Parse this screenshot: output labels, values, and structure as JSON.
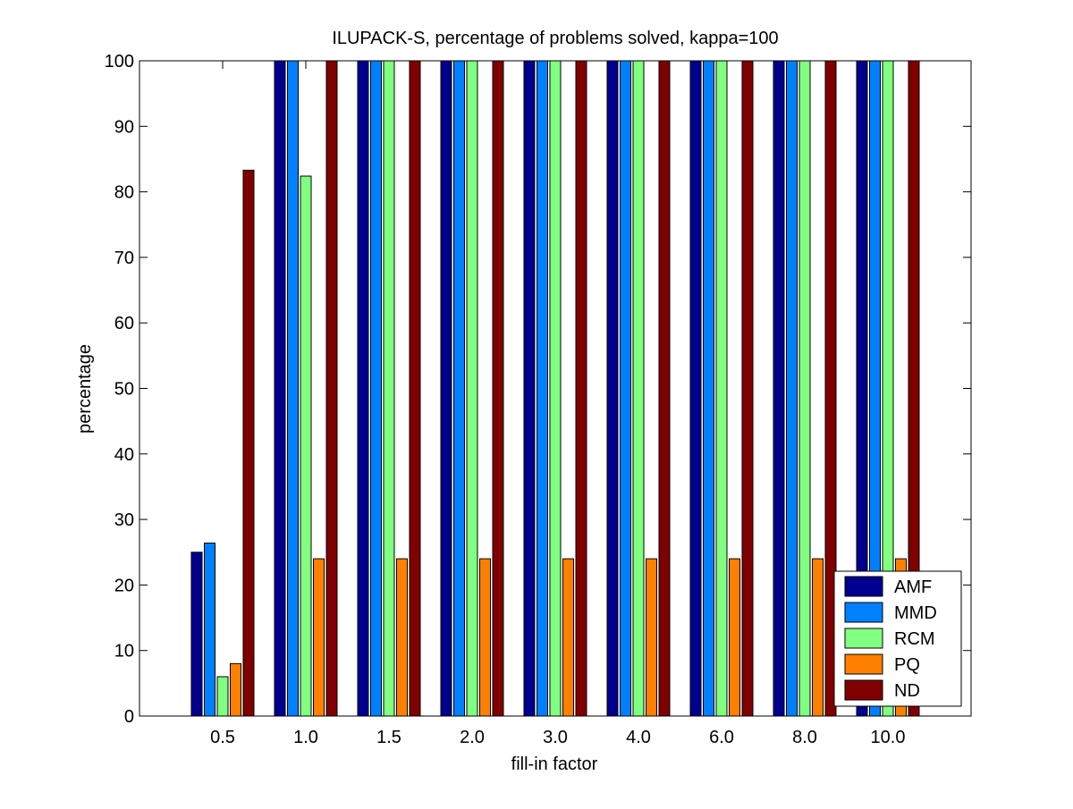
{
  "chart_data": {
    "type": "bar",
    "title": "ILUPACK-S, percentage of problems solved, kappa=100",
    "xlabel": "fill-in factor",
    "ylabel": "percentage",
    "ylim": [
      0,
      100
    ],
    "yticks": [
      0,
      10,
      20,
      30,
      40,
      50,
      60,
      70,
      80,
      90,
      100
    ],
    "grid": false,
    "legend_position": "bottom-right",
    "categories": [
      "0.5",
      "1.0",
      "1.5",
      "2.0",
      "3.0",
      "4.0",
      "6.0",
      "8.0",
      "10.0"
    ],
    "series": [
      {
        "name": "AMF",
        "color": "#00008f",
        "values": [
          25,
          100,
          100,
          100,
          100,
          100,
          100,
          100,
          100
        ]
      },
      {
        "name": "MMD",
        "color": "#0080ff",
        "values": [
          26.4,
          100,
          100,
          100,
          100,
          100,
          100,
          100,
          100
        ]
      },
      {
        "name": "RCM",
        "color": "#80ff80",
        "values": [
          6,
          82.4,
          100,
          100,
          100,
          100,
          100,
          100,
          100
        ]
      },
      {
        "name": "PQ",
        "color": "#ff8000",
        "values": [
          8,
          24,
          24,
          24,
          24,
          24,
          24,
          24,
          24
        ]
      },
      {
        "name": "ND",
        "color": "#800000",
        "values": [
          83.3,
          100,
          100,
          100,
          100,
          100,
          100,
          100,
          100
        ]
      }
    ]
  }
}
